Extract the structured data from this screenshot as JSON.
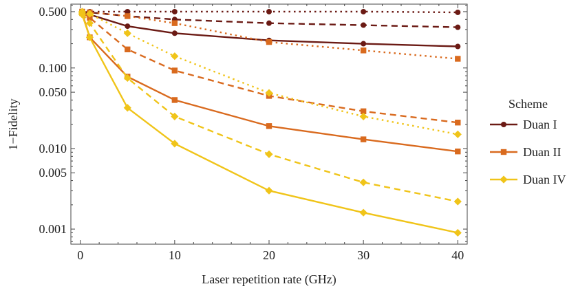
{
  "chart_data": {
    "type": "line",
    "xlabel": "Laser repetition rate (GHz)",
    "ylabel": "1−Fidelity",
    "yscale": "log",
    "xlim": [
      -1,
      41
    ],
    "ylim": [
      0.00065,
      0.62
    ],
    "xticks": [
      0,
      10,
      20,
      30,
      40
    ],
    "xtick_labels": [
      "0",
      "10",
      "20",
      "30",
      "40"
    ],
    "yticks": [
      0.5,
      0.1,
      0.05,
      0.01,
      0.005,
      0.001
    ],
    "ytick_labels": [
      "0.500",
      "0.100",
      "0.050",
      "0.010",
      "0.005",
      "0.001"
    ],
    "legend": {
      "title": "Scheme",
      "position": "right",
      "entries": [
        {
          "label": "Duan I",
          "color": "#6b1a14",
          "marker": "circle"
        },
        {
          "label": "Duan II",
          "color": "#d96a1e",
          "marker": "square"
        },
        {
          "label": "Duan IV",
          "color": "#f0c419",
          "marker": "diamond"
        }
      ]
    },
    "x": [
      0.2,
      1,
      5,
      10,
      20,
      30,
      40
    ],
    "series": [
      {
        "scheme": 0,
        "dash": "solid",
        "values": [
          0.49,
          0.46,
          0.33,
          0.27,
          0.22,
          0.2,
          0.185
        ]
      },
      {
        "scheme": 0,
        "dash": "dashed",
        "values": [
          0.5,
          0.49,
          0.44,
          0.4,
          0.36,
          0.34,
          0.32
        ]
      },
      {
        "scheme": 0,
        "dash": "dotted",
        "values": [
          0.5,
          0.5,
          0.5,
          0.5,
          0.5,
          0.5,
          0.49
        ]
      },
      {
        "scheme": 1,
        "dash": "solid",
        "values": [
          0.48,
          0.24,
          0.078,
          0.04,
          0.019,
          0.013,
          0.0092
        ]
      },
      {
        "scheme": 1,
        "dash": "dashed",
        "values": [
          0.49,
          0.42,
          0.17,
          0.093,
          0.045,
          0.029,
          0.021
        ]
      },
      {
        "scheme": 1,
        "dash": "dotted",
        "values": [
          0.5,
          0.49,
          0.44,
          0.36,
          0.21,
          0.165,
          0.13
        ]
      },
      {
        "scheme": 2,
        "dash": "solid",
        "values": [
          0.46,
          0.24,
          0.032,
          0.0115,
          0.003,
          0.0016,
          0.0009
        ]
      },
      {
        "scheme": 2,
        "dash": "dashed",
        "values": [
          0.48,
          0.36,
          0.075,
          0.025,
          0.0085,
          0.0038,
          0.0022
        ]
      },
      {
        "scheme": 2,
        "dash": "dotted",
        "values": [
          0.5,
          0.47,
          0.27,
          0.14,
          0.049,
          0.025,
          0.015
        ]
      }
    ]
  }
}
